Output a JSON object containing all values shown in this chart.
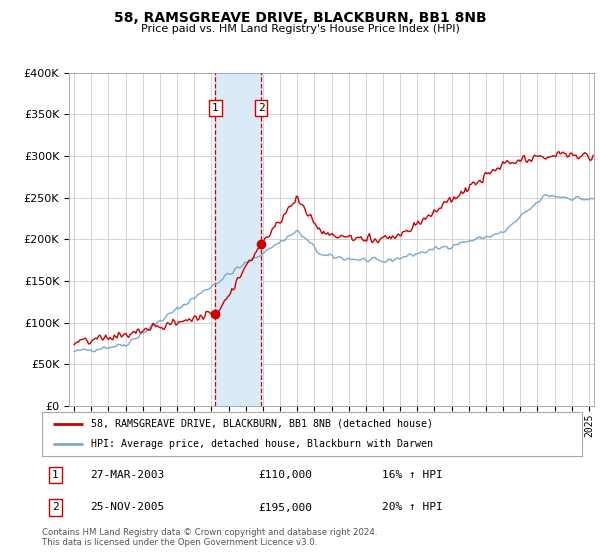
{
  "title": "58, RAMSGREAVE DRIVE, BLACKBURN, BB1 8NB",
  "subtitle": "Price paid vs. HM Land Registry's House Price Index (HPI)",
  "legend_label_red": "58, RAMSGREAVE DRIVE, BLACKBURN, BB1 8NB (detached house)",
  "legend_label_blue": "HPI: Average price, detached house, Blackburn with Darwen",
  "footer": "Contains HM Land Registry data © Crown copyright and database right 2024.\nThis data is licensed under the Open Government Licence v3.0.",
  "sale1_date": 2003.23,
  "sale1_price": 110000,
  "sale1_label": "1",
  "sale1_text": "27-MAR-2003",
  "sale1_hpi": "16% ↑ HPI",
  "sale2_date": 2005.9,
  "sale2_price": 195000,
  "sale2_label": "2",
  "sale2_text": "25-NOV-2005",
  "sale2_hpi": "20% ↑ HPI",
  "ylim_max": 400000,
  "xlim_start": 1994.7,
  "xlim_end": 2025.3,
  "red_color": "#cc0000",
  "blue_color": "#7aaad0",
  "shade_color": "#daeaf7",
  "background_color": "#ffffff",
  "grid_color": "#cccccc",
  "title_fontsize": 10,
  "subtitle_fontsize": 8
}
